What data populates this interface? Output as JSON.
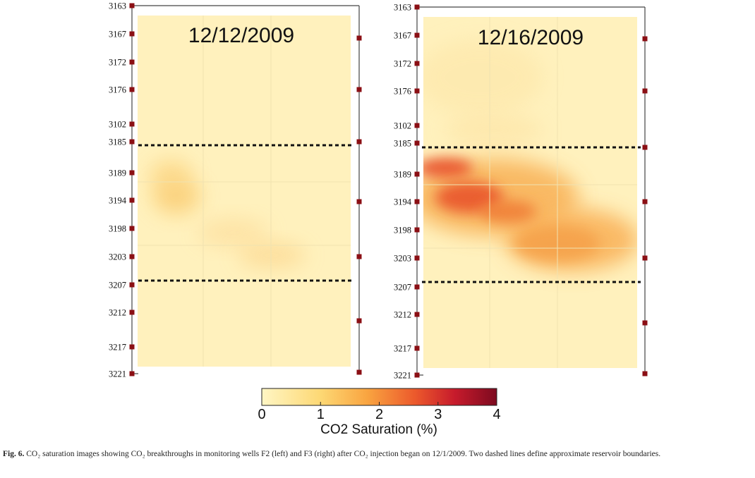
{
  "chart_data": [
    {
      "type": "heatmap",
      "title": "12/12/2009",
      "well": "F2",
      "depth_ticks": [
        "3163",
        "3167",
        "3172",
        "3176",
        "3102",
        "3185",
        "3189",
        "3194",
        "3198",
        "3203",
        "3207",
        "3212",
        "3217",
        "3221"
      ],
      "reservoir_boundaries_depth": [
        3185.5,
        3206.5
      ],
      "co2_saturation_blobs_percent": [
        {
          "depth": 3190,
          "lateral": 0.18,
          "value": 0.7
        },
        {
          "depth": 3194,
          "lateral": 0.22,
          "value": 0.8
        },
        {
          "depth": 3199,
          "lateral": 0.45,
          "value": 0.4
        },
        {
          "depth": 3203,
          "lateral": 0.62,
          "value": 0.5
        }
      ]
    },
    {
      "type": "heatmap",
      "title": "12/16/2009",
      "well": "F3",
      "depth_ticks": [
        "3163",
        "3167",
        "3172",
        "3176",
        "3102",
        "3185",
        "3189",
        "3194",
        "3198",
        "3203",
        "3207",
        "3212",
        "3217",
        "3221"
      ],
      "reservoir_boundaries_depth": [
        3185.5,
        3206.5
      ],
      "co2_saturation_blobs_percent": [
        {
          "depth": 3189,
          "lateral": 0.05,
          "value": 2.5
        },
        {
          "depth": 3193,
          "lateral": 0.2,
          "value": 2.6
        },
        {
          "depth": 3197,
          "lateral": 0.4,
          "value": 1.8
        },
        {
          "depth": 3201,
          "lateral": 0.62,
          "value": 1.4
        },
        {
          "depth": 3204,
          "lateral": 0.75,
          "value": 1.2
        }
      ]
    }
  ],
  "colorbar": {
    "ticks": [
      "0",
      "1",
      "2",
      "3",
      "4"
    ],
    "label": "CO2 Saturation (%)",
    "colors": [
      "#fff6c4",
      "#fdd874",
      "#f9a440",
      "#ec5a2c",
      "#c71b2c",
      "#7d0a1f"
    ]
  },
  "caption": {
    "fig_label": "Fig. 6.",
    "text": "CO₂ saturation images showing CO₂ breakthroughs in monitoring wells F2 (left) and F3 (right) after CO₂ injection began on 12/1/2009. Two dashed lines define approximate reservoir boundaries."
  }
}
